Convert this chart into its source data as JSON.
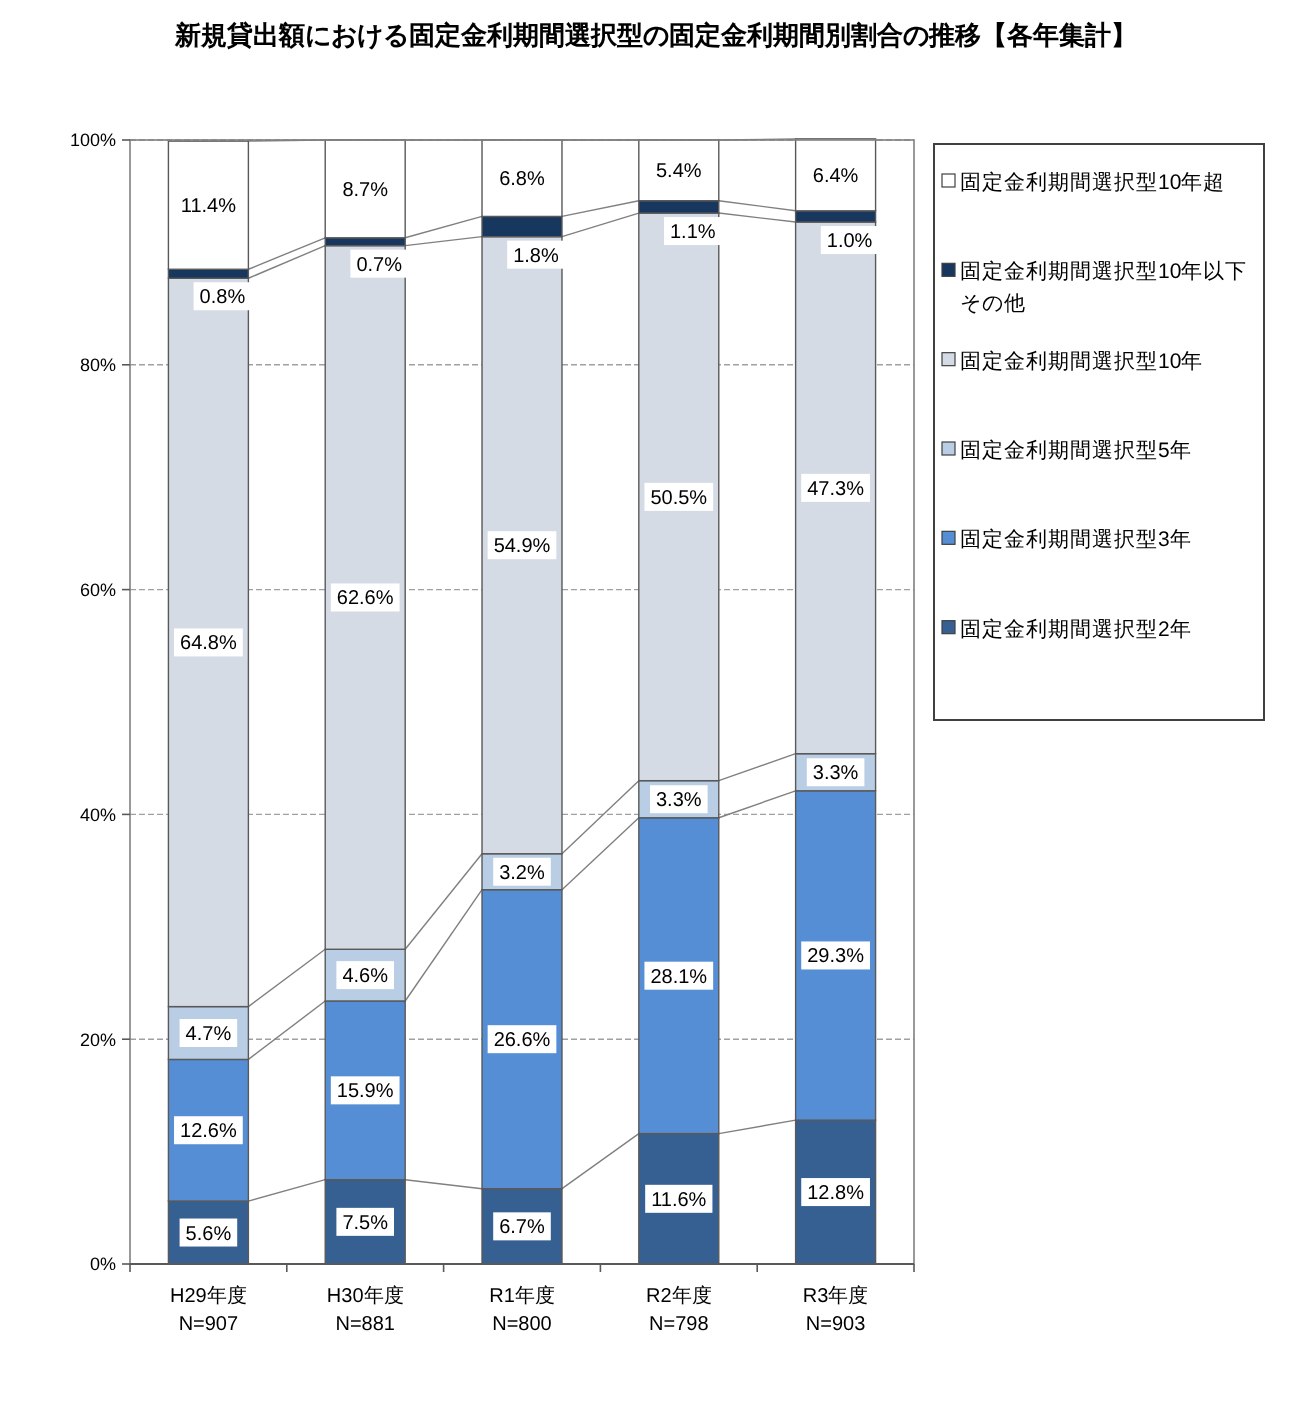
{
  "chart_data": {
    "type": "bar",
    "title": "新規貸出額における固定金利期間選択型の固定金利期間別割合の推移【各年集計】",
    "categories": [
      "H29年度\nN=907",
      "H30年度\nN=881",
      "R1年度\nN=800",
      "R2年度\nN=798",
      "R3年度\nN=903"
    ],
    "stacked": true,
    "series": [
      {
        "name": "固定金利期間選択型2年",
        "color": "#376092",
        "values": [
          5.6,
          7.5,
          6.7,
          11.6,
          12.8
        ],
        "value_labels": [
          "5.6%",
          "7.5%",
          "6.7%",
          "11.6%",
          "12.8%"
        ]
      },
      {
        "name": "固定金利期間選択型3年",
        "color": "#558ed5",
        "values": [
          12.6,
          15.9,
          26.6,
          28.1,
          29.3
        ],
        "value_labels": [
          "12.6%",
          "15.9%",
          "26.6%",
          "28.1%",
          "29.3%"
        ]
      },
      {
        "name": "固定金利期間選択型5年",
        "color": "#b9cde5",
        "values": [
          4.7,
          4.6,
          3.2,
          3.3,
          3.3
        ],
        "value_labels": [
          "4.7%",
          "4.6%",
          "3.2%",
          "3.3%",
          "3.3%"
        ]
      },
      {
        "name": "固定金利期間選択型10年",
        "color": "#d5dbe5",
        "values": [
          64.8,
          62.6,
          54.9,
          50.5,
          47.3
        ],
        "value_labels": [
          "64.8%",
          "62.6%",
          "54.9%",
          "50.5%",
          "47.3%"
        ]
      },
      {
        "name": "固定金利期間選択型10年以下その他",
        "color": "#17375e",
        "values": [
          0.8,
          0.7,
          1.8,
          1.1,
          1.0
        ],
        "value_labels": [
          "0.8%",
          "0.7%",
          "1.8%",
          "1.1%",
          "1.0%"
        ]
      },
      {
        "name": "固定金利期間選択型10年超",
        "color": "#ffffff",
        "values": [
          11.4,
          8.7,
          6.8,
          5.4,
          6.4
        ],
        "value_labels": [
          "11.4%",
          "8.7%",
          "6.8%",
          "5.4%",
          "6.4%"
        ]
      }
    ],
    "ylim": [
      0,
      100
    ],
    "yticks": [
      {
        "value": 0,
        "label": "0%"
      },
      {
        "value": 20,
        "label": "20%"
      },
      {
        "value": 40,
        "label": "40%"
      },
      {
        "value": 60,
        "label": "60%"
      },
      {
        "value": 80,
        "label": "80%"
      },
      {
        "value": 100,
        "label": "100%"
      }
    ],
    "grid": "y",
    "legend": "right"
  }
}
